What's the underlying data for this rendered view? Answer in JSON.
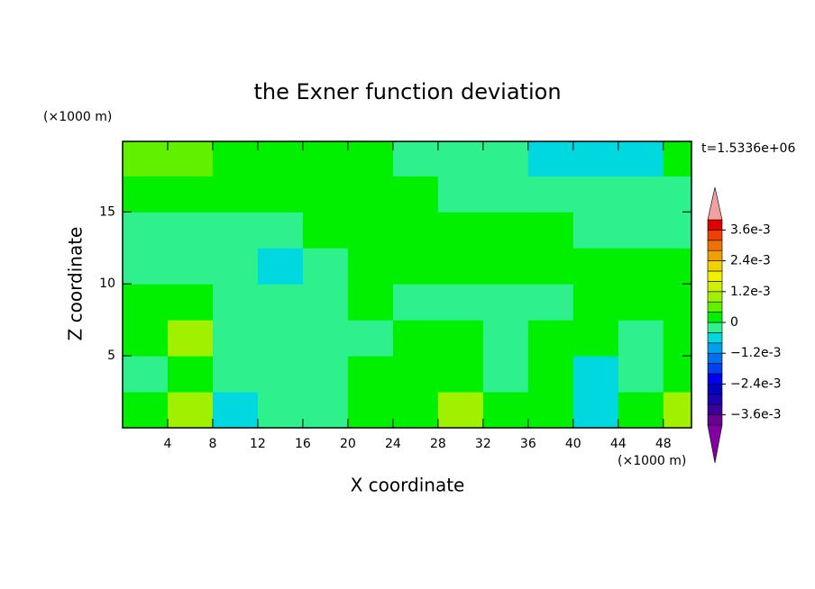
{
  "chart_data": {
    "type": "contour",
    "title": "the Exner function deviation",
    "xlabel": "X coordinate",
    "ylabel": "Z coordinate",
    "xunit": "(×1000 m)",
    "yunit": "(×1000 m)",
    "time_label": "t=1.5336e+06",
    "xlim": [
      0,
      50.5
    ],
    "ylim": [
      0,
      19.9
    ],
    "xticks": [
      4,
      8,
      12,
      16,
      20,
      24,
      28,
      32,
      36,
      40,
      44,
      48
    ],
    "yticks": [
      5,
      10,
      15
    ],
    "x": [
      2,
      6,
      10,
      14,
      18,
      22,
      26,
      30,
      34,
      38,
      42,
      46,
      50
    ],
    "y": [
      1.25,
      3.75,
      6.25,
      8.75,
      11.25,
      13.75,
      16.25,
      18.75
    ],
    "z": [
      [
        0.0002,
        0.001,
        -0.0006,
        -0.0002,
        -0.0002,
        0.0002,
        0.0002,
        0.001,
        0.0002,
        0.0002,
        -0.0006,
        0.0002,
        0.001
      ],
      [
        -0.0002,
        0.0002,
        -0.0002,
        -0.0002,
        -0.0002,
        0.0002,
        0.0002,
        0.0002,
        -0.0002,
        0.0002,
        -0.0006,
        -0.0002,
        0.0002
      ],
      [
        0.0002,
        0.001,
        -0.0002,
        -0.0002,
        -0.0002,
        -0.0002,
        0.0002,
        0.0002,
        -0.0002,
        0.0002,
        0.0002,
        -0.0002,
        0.0002
      ],
      [
        0.0002,
        0.0002,
        -0.0002,
        -0.0002,
        -0.0002,
        0.0002,
        -0.0002,
        -0.0002,
        -0.0002,
        -0.0002,
        0.0002,
        0.0002,
        0.0002
      ],
      [
        -0.0002,
        -0.0002,
        -0.0002,
        -0.0006,
        -0.0002,
        0.0002,
        0.0002,
        0.0002,
        0.0002,
        0.0002,
        0.0002,
        0.0002,
        0.0002
      ],
      [
        -0.0002,
        -0.0002,
        -0.0002,
        -0.0002,
        0.0002,
        0.0002,
        0.0002,
        0.0002,
        0.0002,
        0.0002,
        -0.0002,
        -0.0002,
        -0.0002
      ],
      [
        0.0002,
        0.0002,
        0.0002,
        0.0002,
        0.0002,
        0.0002,
        0.0002,
        -0.0002,
        -0.0002,
        -0.0002,
        -0.0002,
        -0.0002,
        -0.0002
      ],
      [
        0.0006,
        0.0006,
        0.0002,
        0.0002,
        0.0002,
        0.0002,
        -0.0002,
        -0.0002,
        -0.0002,
        -0.0006,
        -0.0006,
        -0.0006,
        0.0002
      ]
    ],
    "levels": [
      -0.004,
      -0.0036,
      -0.0032,
      -0.0028,
      -0.0024,
      -0.002,
      -0.0016,
      -0.0012,
      -0.0008,
      -0.0004,
      0,
      0.0004,
      0.0008,
      0.0012,
      0.0016,
      0.002,
      0.0024,
      0.0028,
      0.0032,
      0.0036,
      0.004
    ],
    "colors": [
      "#6a0090",
      "#3c0096",
      "#1e00b4",
      "#0000c8",
      "#0000f0",
      "#0040f0",
      "#0070f0",
      "#00a0f0",
      "#00d8e0",
      "#2ef08c",
      "#00f000",
      "#60f000",
      "#a0f000",
      "#d0f000",
      "#f0f000",
      "#f0d000",
      "#f0a000",
      "#f07000",
      "#f04000",
      "#e00000"
    ],
    "under_color": "#8000a0",
    "over_color": "#f0a0a0",
    "cticks": [
      {
        "value": 0.0036,
        "label": "3.6e-3"
      },
      {
        "value": 0.0024,
        "label": "2.4e-3"
      },
      {
        "value": 0.0012,
        "label": "1.2e-3"
      },
      0,
      {
        "value": -0.0012,
        "label": "−1.2e-3"
      },
      {
        "value": -0.0024,
        "label": "−2.4e-3"
      },
      {
        "value": -0.0036,
        "label": "−3.6e-3"
      }
    ]
  }
}
